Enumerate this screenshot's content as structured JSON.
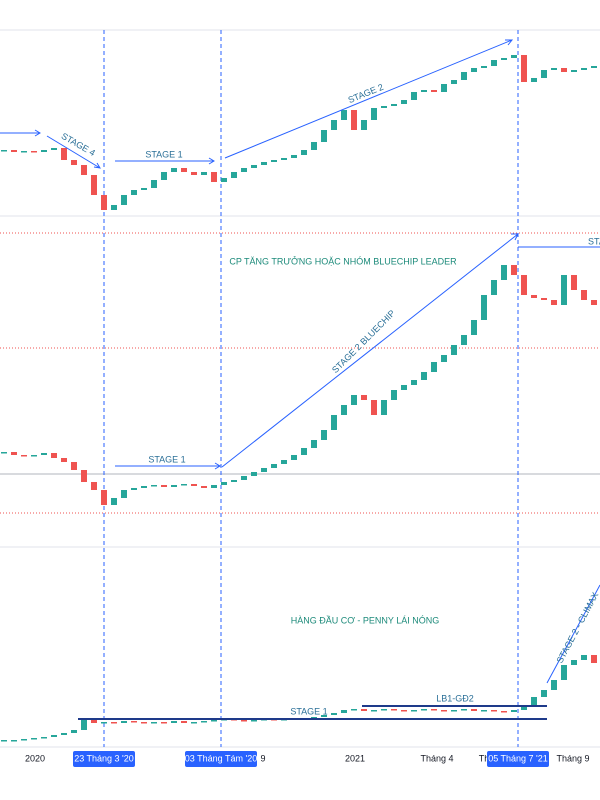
{
  "chart_data": [
    {
      "type": "candlestick",
      "up_color": "#26a69a",
      "down_color": "#ef5350",
      "ylim": [
        0,
        190
      ],
      "annotations": [
        "STAGE 4",
        "STAGE 1",
        "STAGE 2"
      ],
      "open": [
        64,
        65,
        63,
        64,
        63,
        65,
        67,
        55,
        50,
        40,
        20,
        5,
        10,
        20,
        25,
        27,
        35,
        43,
        47,
        43,
        40,
        43,
        33,
        37,
        43,
        47,
        50,
        53,
        55,
        57,
        60,
        65,
        73,
        85,
        95,
        105,
        85,
        95,
        107,
        109,
        111,
        115,
        123,
        125,
        123,
        131,
        135,
        143,
        147,
        149,
        155,
        157,
        160,
        133,
        137,
        145,
        147,
        143,
        145,
        147
      ],
      "close": [
        65,
        63,
        64,
        63,
        65,
        67,
        55,
        50,
        40,
        20,
        5,
        10,
        20,
        25,
        27,
        35,
        43,
        47,
        43,
        40,
        43,
        33,
        37,
        43,
        47,
        50,
        53,
        55,
        57,
        60,
        65,
        73,
        85,
        95,
        105,
        85,
        95,
        107,
        109,
        111,
        115,
        123,
        125,
        123,
        131,
        135,
        143,
        147,
        149,
        155,
        157,
        160,
        133,
        137,
        145,
        147,
        143,
        145,
        147,
        149
      ]
    },
    {
      "type": "candlestick",
      "up_color": "#26a69a",
      "down_color": "#ef5350",
      "ylim": [
        0,
        315
      ],
      "annotations": [
        "CP TĂNG TRƯỞNG HOẶC NHÓM BLUECHIP LEADER",
        "STAGE 1",
        "STAGE 2 BLUECHIP",
        "STAG"
      ],
      "open": [
        87,
        88,
        85,
        84,
        85,
        87,
        82,
        78,
        70,
        58,
        50,
        35,
        42,
        50,
        52,
        54,
        55,
        53,
        55,
        56,
        54,
        52,
        55,
        58,
        60,
        64,
        68,
        72,
        76,
        80,
        85,
        92,
        100,
        110,
        125,
        135,
        145,
        140,
        125,
        140,
        150,
        155,
        160,
        168,
        178,
        185,
        195,
        205,
        220,
        245,
        260,
        275,
        265,
        245,
        242,
        240,
        235,
        265,
        250,
        240
      ],
      "close": [
        88,
        85,
        84,
        85,
        87,
        82,
        78,
        70,
        58,
        50,
        35,
        42,
        50,
        52,
        54,
        55,
        53,
        55,
        56,
        54,
        52,
        55,
        58,
        60,
        64,
        68,
        72,
        76,
        80,
        85,
        92,
        100,
        110,
        125,
        135,
        145,
        140,
        125,
        140,
        150,
        155,
        160,
        168,
        178,
        185,
        195,
        205,
        220,
        245,
        260,
        275,
        265,
        245,
        242,
        240,
        235,
        265,
        250,
        240,
        235
      ]
    },
    {
      "type": "candlestick",
      "up_color": "#26a69a",
      "down_color": "#ef5350",
      "ylim": [
        0,
        190
      ],
      "annotations": [
        "HÀNG ĐẦU CƠ - PENNY LÁI NÓNG",
        "STAGE 1",
        "LB1-GĐ2",
        "STAGE 2 - CLIMAX"
      ],
      "open": [
        4,
        5,
        5,
        6,
        7,
        8,
        10,
        12,
        15,
        25,
        22,
        23,
        22,
        24,
        23,
        22,
        23,
        22,
        24,
        22,
        23,
        24,
        25,
        26,
        25,
        24,
        25,
        26,
        25,
        26,
        27,
        26,
        28,
        30,
        32,
        35,
        36,
        34,
        35,
        36,
        35,
        34,
        35,
        36,
        35,
        34,
        35,
        36,
        34,
        35,
        34,
        33,
        35,
        40,
        48,
        55,
        65,
        80,
        85,
        90
      ],
      "close": [
        5,
        5,
        6,
        7,
        8,
        10,
        12,
        15,
        25,
        22,
        23,
        22,
        24,
        23,
        22,
        23,
        22,
        24,
        22,
        23,
        24,
        25,
        26,
        25,
        24,
        25,
        26,
        25,
        26,
        27,
        26,
        28,
        30,
        32,
        35,
        36,
        34,
        35,
        36,
        35,
        34,
        35,
        36,
        35,
        34,
        35,
        36,
        34,
        35,
        34,
        33,
        35,
        40,
        48,
        55,
        65,
        80,
        85,
        90,
        82
      ]
    }
  ],
  "x_axis_labels": [
    "2020",
    "23 Tháng 3 '20",
    "03 Tháng Tám '20",
    "9",
    "2021",
    "Tháng 4",
    "Th",
    "05 Tháng 7 '21",
    "Tháng 9"
  ]
}
